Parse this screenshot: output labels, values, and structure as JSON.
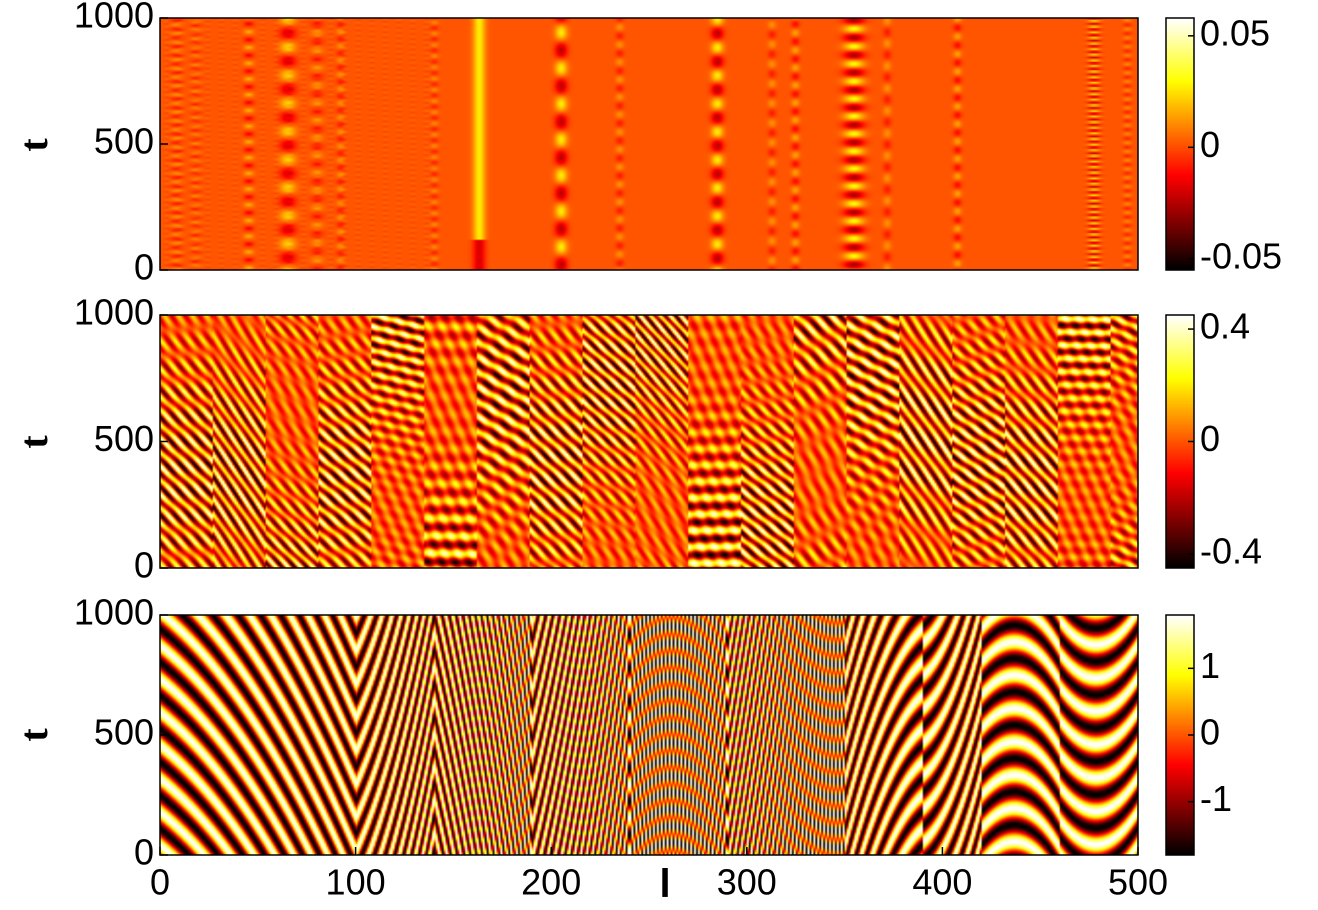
{
  "chart_data": [
    {
      "type": "heatmap",
      "title": "",
      "xlabel": "",
      "ylabel": "t",
      "xlim": [
        0,
        500
      ],
      "ylim": [
        0,
        1000
      ],
      "y_ticks": [
        "0",
        "500",
        "1000"
      ],
      "colorbar": {
        "colormap": "hot",
        "clim": [
          -0.055,
          0.058
        ],
        "ticks": [
          -0.05,
          0,
          0.05
        ],
        "tick_labels": [
          "-0.05",
          "0",
          "0.05"
        ]
      },
      "pattern": "stationary oscillating columns, mostly near zero"
    },
    {
      "type": "heatmap",
      "title": "",
      "xlabel": "",
      "ylabel": "t",
      "xlim": [
        0,
        500
      ],
      "ylim": [
        0,
        1000
      ],
      "y_ticks": [
        "0",
        "500",
        "1000"
      ],
      "colorbar": {
        "colormap": "hot",
        "clim": [
          -0.45,
          0.45
        ],
        "ticks": [
          -0.4,
          0,
          0.4
        ],
        "tick_labels": [
          "-0.4",
          "0",
          "0.4"
        ]
      },
      "pattern": "irregular traveling wave segments"
    },
    {
      "type": "heatmap",
      "title": "",
      "xlabel": "l",
      "ylabel": "t",
      "xlim": [
        0,
        500
      ],
      "ylim": [
        0,
        1000
      ],
      "y_ticks": [
        "0",
        "500",
        "1000"
      ],
      "x_ticks": [
        "0",
        "100",
        "200",
        "300",
        "400",
        "500"
      ],
      "colorbar": {
        "colormap": "hot",
        "clim": [
          -1.8,
          1.8
        ],
        "ticks": [
          -1,
          0,
          1
        ],
        "tick_labels": [
          "-1",
          "0",
          "1"
        ]
      },
      "pattern": "zig-zag traveling wave stripes"
    }
  ]
}
